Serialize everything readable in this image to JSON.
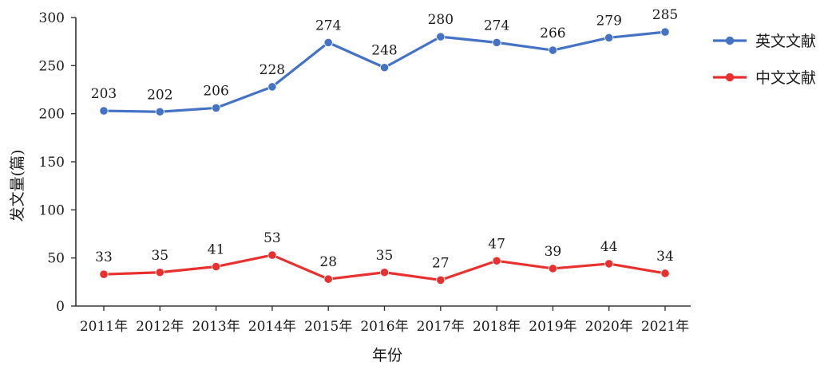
{
  "chart_data": {
    "type": "line",
    "xlabel": "年份",
    "ylabel": "发文量(篇)",
    "ylim": [
      0,
      300
    ],
    "yticks": [
      0,
      50,
      100,
      150,
      200,
      250,
      300
    ],
    "grid": false,
    "legend_position": "right",
    "categories": [
      "2011年",
      "2012年",
      "2013年",
      "2014年",
      "2015年",
      "2016年",
      "2017年",
      "2018年",
      "2019年",
      "2020年",
      "2021年"
    ],
    "series": [
      {
        "name": "英文文献",
        "color": "#4472c4",
        "values": [
          203,
          202,
          206,
          228,
          274,
          248,
          280,
          274,
          266,
          279,
          285
        ]
      },
      {
        "name": "中文文献",
        "color": "#e8312f",
        "values": [
          33,
          35,
          41,
          53,
          28,
          35,
          27,
          47,
          39,
          44,
          34
        ]
      }
    ]
  }
}
